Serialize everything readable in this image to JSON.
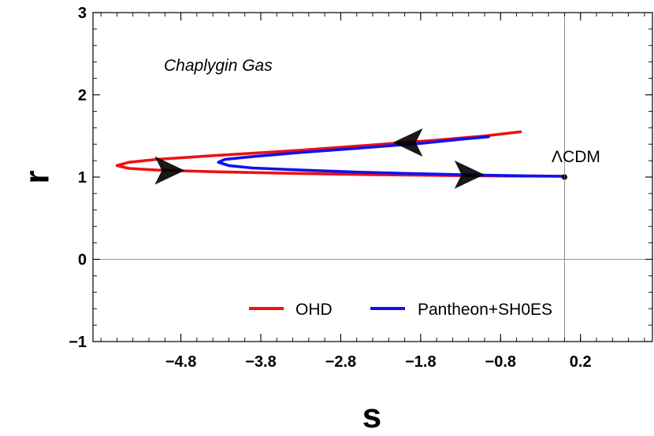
{
  "chart_data": {
    "type": "line",
    "title": "",
    "xlabel": "s",
    "ylabel": "r",
    "xlim": [
      -5.9,
      1.1
    ],
    "ylim": [
      -1,
      3
    ],
    "x_ticks": [
      -4.8,
      -3.8,
      -2.8,
      -1.8,
      -0.8,
      0.2
    ],
    "x_tick_labels": [
      "−4.8",
      "−3.8",
      "−2.8",
      "−1.8",
      "−0.8",
      "0.2"
    ],
    "y_ticks": [
      -1,
      0,
      1,
      2,
      3
    ],
    "y_tick_labels": [
      "−1",
      "0",
      "1",
      "2",
      "3"
    ],
    "grid": false,
    "legend_position": "bottom-right",
    "annotations": [
      {
        "text": "Chaplygin Gas",
        "style": "italic"
      },
      {
        "text": "ΛCDM"
      }
    ],
    "point": {
      "label": "ΛCDM",
      "x": 0,
      "y": 1
    },
    "series": [
      {
        "name": "OHD",
        "color": "#ee1111",
        "x": [
          0.0,
          -0.6,
          -1.4,
          -2.4,
          -3.4,
          -4.4,
          -5.1,
          -5.45,
          -5.6,
          -5.45,
          -5.1,
          -4.4,
          -3.4,
          -2.4,
          -1.6,
          -1.0,
          -0.55
        ],
        "y": [
          1.01,
          1.012,
          1.018,
          1.03,
          1.045,
          1.065,
          1.085,
          1.105,
          1.14,
          1.18,
          1.215,
          1.26,
          1.32,
          1.39,
          1.45,
          1.5,
          1.55
        ]
      },
      {
        "name": "Pantheon+SH0ES",
        "color": "#1111ee",
        "x": [
          0.0,
          -0.5,
          -1.1,
          -1.8,
          -2.6,
          -3.3,
          -3.9,
          -4.2,
          -4.33,
          -4.25,
          -3.9,
          -3.3,
          -2.6,
          -1.8,
          -1.3,
          -0.95
        ],
        "y": [
          1.01,
          1.015,
          1.025,
          1.04,
          1.06,
          1.085,
          1.11,
          1.14,
          1.18,
          1.215,
          1.25,
          1.3,
          1.35,
          1.41,
          1.46,
          1.49
        ]
      }
    ],
    "arrows": [
      {
        "x": -4.95,
        "y": 1.08,
        "direction": "right"
      },
      {
        "x": -1.2,
        "y": 1.03,
        "direction": "right"
      },
      {
        "x": -1.95,
        "y": 1.42,
        "direction": "left"
      }
    ]
  }
}
